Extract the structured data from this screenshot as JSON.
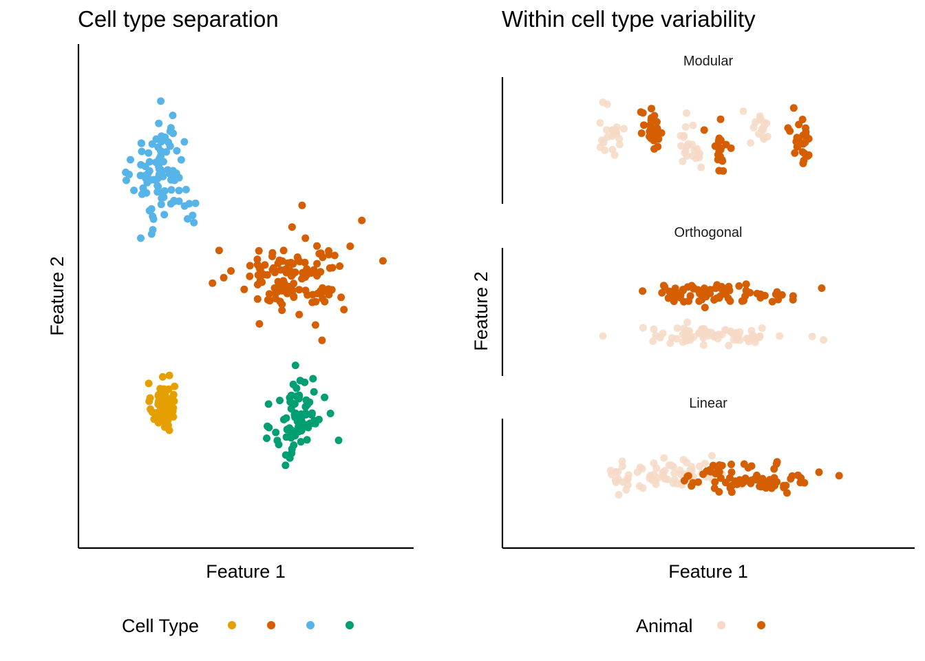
{
  "figure": {
    "left_panel": {
      "title": "Cell type separation",
      "xlabel": "Feature 1",
      "ylabel": "Feature 2",
      "legend_title": "Cell Type"
    },
    "right_panel": {
      "title": "Within cell type variability",
      "xlabel": "Feature 1",
      "ylabel": "Feature 2",
      "legend_title": "Animal"
    }
  },
  "colors": {
    "orange": "#E69F00",
    "vermillion": "#D55E00",
    "sky_blue": "#56B4E9",
    "green": "#009E73",
    "faded_vermillion": "#F6D9C6"
  },
  "chart_data": [
    {
      "type": "scatter",
      "title": "Cell type separation",
      "xlabel": "Feature 1",
      "ylabel": "Feature 2",
      "xlim": [
        0,
        10
      ],
      "ylim": [
        0,
        10
      ],
      "ticks": "none",
      "grid": false,
      "legend": {
        "title": "Cell Type",
        "position": "bottom",
        "entries": [
          "",
          "",
          "",
          ""
        ]
      },
      "series": [
        {
          "color": "#E69F00",
          "center": [
            2.5,
            2.8
          ],
          "spread": [
            0.35,
            0.45
          ],
          "n": 70,
          "extremes": [
            [
              2.7,
              3.4
            ],
            [
              2.7,
              2.3
            ]
          ]
        },
        {
          "color": "#D55E00",
          "center": [
            6.4,
            5.4
          ],
          "spread": [
            1.7,
            0.75
          ],
          "n": 120,
          "extremes": [
            [
              6.7,
              6.8
            ],
            [
              7.3,
              4.1
            ],
            [
              8.5,
              6.5
            ],
            [
              4.2,
              5.9
            ]
          ]
        },
        {
          "color": "#56B4E9",
          "center": [
            2.5,
            7.4
          ],
          "spread": [
            0.9,
            1.1
          ],
          "n": 90,
          "extremes": [
            [
              2.8,
              8.6
            ],
            [
              3.4,
              6.6
            ],
            [
              1.4,
              7.3
            ]
          ]
        },
        {
          "color": "#009E73",
          "center": [
            6.6,
            2.5
          ],
          "spread": [
            0.75,
            0.85
          ],
          "n": 80,
          "extremes": [
            [
              6.5,
              3.6
            ],
            [
              6.2,
              1.6
            ],
            [
              7.8,
              2.1
            ]
          ]
        }
      ]
    },
    {
      "type": "scatter",
      "title": "Within cell type variability",
      "xlabel": "Feature 1",
      "ylabel": "Feature 2",
      "xlim": [
        0,
        10
      ],
      "ticks": "none",
      "grid": false,
      "legend": {
        "title": "Animal",
        "position": "bottom",
        "entries": [
          "",
          ""
        ]
      },
      "facets": [
        {
          "label": "Modular",
          "ylim": [
            0,
            10
          ],
          "series": [
            {
              "color": "#F6D9C6",
              "highlight": false,
              "clusters": [
                {
                  "x": 2.6,
                  "y": 5.7,
                  "sx": 0.35,
                  "sy": 1.8,
                  "n": 22
                },
                {
                  "x": 4.6,
                  "y": 4.8,
                  "sx": 0.35,
                  "sy": 2.6,
                  "n": 22
                },
                {
                  "x": 6.3,
                  "y": 6.2,
                  "sx": 0.35,
                  "sy": 1.6,
                  "n": 16
                }
              ]
            },
            {
              "color": "#D55E00",
              "highlight": true,
              "clusters": [
                {
                  "x": 3.6,
                  "y": 5.6,
                  "sx": 0.28,
                  "sy": 1.9,
                  "n": 24
                },
                {
                  "x": 5.3,
                  "y": 4.6,
                  "sx": 0.3,
                  "sy": 2.4,
                  "n": 20
                },
                {
                  "x": 7.3,
                  "y": 5.2,
                  "sx": 0.3,
                  "sy": 2.3,
                  "n": 24
                }
              ]
            }
          ]
        },
        {
          "label": "Orthogonal",
          "ylim": [
            0,
            10
          ],
          "series": [
            {
              "color": "#F6D9C6",
              "highlight": false,
              "clusters": [
                {
                  "x": 5.1,
                  "y": 3.0,
                  "sx": 1.85,
                  "sy": 0.75,
                  "n": 75
                }
              ]
            },
            {
              "color": "#D55E00",
              "highlight": true,
              "clusters": [
                {
                  "x": 5.1,
                  "y": 6.6,
                  "sx": 1.85,
                  "sy": 0.75,
                  "n": 75
                }
              ]
            }
          ]
        },
        {
          "label": "Linear",
          "ylim": [
            0,
            10
          ],
          "series": [
            {
              "color": "#F6D9C6",
              "highlight": false,
              "clusters": [
                {
                  "x": 4.0,
                  "y": 5.6,
                  "sx": 1.55,
                  "sy": 1.3,
                  "n": 70
                }
              ]
            },
            {
              "color": "#D55E00",
              "highlight": true,
              "clusters": [
                {
                  "x": 6.0,
                  "y": 5.4,
                  "sx": 1.55,
                  "sy": 1.3,
                  "n": 75
                }
              ]
            }
          ]
        }
      ]
    }
  ]
}
